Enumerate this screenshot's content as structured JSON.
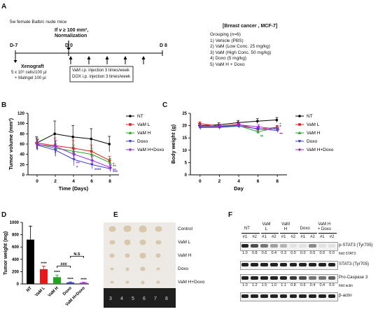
{
  "panelA": {
    "letter": "A",
    "header": "5w female Balb/c nude mice",
    "threshold_line1": "If v ≥ 100 mm³,",
    "threshold_line2": "Normalization",
    "d_start": "D-7",
    "d_zero": "D 0",
    "d_end": "D 8",
    "xenograft_title": "Xenograft",
    "xenograft_line1": "5 x 10⁶ cells/100 µl",
    "xenograft_line2": "+ Matrigel 100 µl",
    "injection_line1": "VaM i.p. injection 3 times/week",
    "injection_line2": "DOX i.p. injection 3 times/week",
    "cancer_title": "[Breast cancer , MCF-7]",
    "grouping_title": "Grouping (n=6)",
    "groups": [
      "1)  Vehicle (PBS)",
      "2)  VaM (Low Conc. 25 mg/kg)",
      "3)  VaM (High Conc. 50 mg/kg)",
      "4)  Doxo (5 mg/kg)",
      "5)  VaM H + Doxo"
    ]
  },
  "series_colors": {
    "NT": "#000000",
    "VaM L": "#e8191a",
    "VaM H": "#1fa61f",
    "Doxo": "#3a3adb",
    "VaM H+Doxo": "#a020f0"
  },
  "legend": [
    "NT",
    "VaM L",
    "VaM H",
    "Doxo",
    "VaM H+Doxo"
  ],
  "panelB": {
    "letter": "B",
    "chart_data": {
      "type": "line",
      "ylabel": "Tumor volume (mm³)",
      "xlabel": "Time (Days)",
      "x": [
        0,
        2,
        4,
        6,
        8
      ],
      "xticks": [
        "0",
        "2",
        "4",
        "6",
        "8"
      ],
      "yticks": [
        "0",
        "20",
        "40",
        "60",
        "80",
        "100",
        "120"
      ],
      "ylim": [
        0,
        120
      ],
      "series": [
        {
          "name": "NT",
          "values": [
            62,
            80,
            74,
            70,
            60
          ],
          "err": [
            12,
            25,
            22,
            20,
            15
          ]
        },
        {
          "name": "VaM L",
          "values": [
            62,
            57,
            52,
            46,
            28
          ],
          "err": [
            10,
            15,
            15,
            12,
            8
          ]
        },
        {
          "name": "VaM H",
          "values": [
            60,
            52,
            46,
            40,
            24
          ],
          "err": [
            10,
            15,
            12,
            12,
            8
          ]
        },
        {
          "name": "Doxo",
          "values": [
            58,
            48,
            30,
            20,
            12
          ],
          "err": [
            10,
            12,
            12,
            8,
            6
          ]
        },
        {
          "name": "VaM H+Doxo",
          "values": [
            59,
            55,
            40,
            28,
            14
          ],
          "err": [
            10,
            12,
            10,
            8,
            6
          ]
        }
      ]
    },
    "stars": [
      "*",
      "**",
      "****",
      "***",
      "**",
      "**",
      "*"
    ]
  },
  "panelC": {
    "letter": "C",
    "chart_data": {
      "type": "line",
      "ylabel": "Body weight (g)",
      "xlabel": "Day",
      "x": [
        0,
        2,
        4,
        6,
        8
      ],
      "xticks": [
        "0",
        "2",
        "4",
        "6",
        "8"
      ],
      "yticks": [
        "0",
        "5",
        "10",
        "15",
        "20",
        "25"
      ],
      "ylim": [
        0,
        25
      ],
      "series": [
        {
          "name": "NT",
          "values": [
            20.0,
            20.3,
            21.2,
            21.8,
            22.3
          ],
          "err": [
            0.8,
            0.8,
            0.9,
            1.0,
            1.0
          ]
        },
        {
          "name": "VaM L",
          "values": [
            20.8,
            19.8,
            20.5,
            18.5,
            19.3
          ],
          "err": [
            0.8,
            0.8,
            0.8,
            0.8,
            0.8
          ]
        },
        {
          "name": "VaM H",
          "values": [
            19.5,
            19.5,
            20.0,
            17.5,
            19.2
          ],
          "err": [
            0.8,
            0.8,
            0.8,
            0.8,
            0.8
          ]
        },
        {
          "name": "Doxo",
          "values": [
            19.2,
            19.3,
            19.8,
            18.7,
            18.0
          ],
          "err": [
            0.8,
            0.8,
            0.8,
            0.8,
            0.8
          ]
        },
        {
          "name": "VaM H+Doxo",
          "values": [
            19.8,
            19.7,
            20.3,
            19.5,
            18.5
          ],
          "err": [
            0.8,
            0.8,
            0.8,
            0.8,
            0.8
          ]
        }
      ]
    },
    "stars": [
      "**",
      "**",
      "*",
      "*"
    ]
  },
  "panelD": {
    "letter": "D",
    "chart_data": {
      "type": "bar",
      "ylabel": "Tumor weight (mg)",
      "categories": [
        "NT",
        "VaM L",
        "VaM H",
        "Doxo",
        "VaM H+Doxo"
      ],
      "values": [
        720,
        240,
        110,
        25,
        20
      ],
      "err": [
        220,
        50,
        35,
        8,
        8
      ],
      "yticks": [
        "0",
        "200",
        "400",
        "600",
        "800",
        "1000"
      ],
      "ylim": [
        0,
        1000
      ],
      "colors": [
        "#000000",
        "#e8191a",
        "#1fa61f",
        "#3a3adb",
        "#a020f0"
      ]
    },
    "sig_stars": "****",
    "sig_hash": "###",
    "sig_ns": "N.S"
  },
  "panelE": {
    "letter": "E",
    "rows": [
      "Control",
      "VaM L",
      "VaM H",
      "Doxo",
      "VaM H+Doxo"
    ],
    "ruler_marks": [
      "3",
      "4",
      "5",
      "6",
      "7",
      "8"
    ]
  },
  "panelF": {
    "letter": "F",
    "groups": [
      "NT",
      "VaM L",
      "VaM H",
      "Doxo",
      "VaM H + Doxo"
    ],
    "lanes": [
      "#1",
      "#2",
      "#1",
      "#2",
      "#1",
      "#2",
      "#1",
      "#2",
      "#1",
      "#2"
    ],
    "rows": [
      {
        "label": "p-STAT3 (Tyr705)",
        "folds": [
          "1.0",
          "0.8",
          "0.6",
          "0.4",
          "0.3",
          "0.0",
          "0.0",
          "0.5",
          "0.0",
          "0.0"
        ],
        "fold_note": "fold STAT3",
        "intensity": [
          1,
          0.8,
          0.6,
          0.4,
          0.3,
          0.05,
          0.05,
          0.5,
          0.05,
          0.05
        ]
      },
      {
        "label": "STAT3 (Tyr705)",
        "folds": [],
        "fold_note": "",
        "intensity": [
          1,
          1,
          1,
          1,
          1,
          1,
          1,
          1,
          1,
          1
        ]
      },
      {
        "label": "Pro-Caspase 3",
        "folds": [
          "1.0",
          "1.2",
          "1.5",
          "1.0",
          "1.1",
          "0.8",
          "0.6",
          "0.4",
          "0.4",
          "0.6"
        ],
        "fold_note": "fold actin",
        "intensity": [
          1,
          1,
          1,
          1,
          1,
          0.9,
          0.8,
          0.6,
          0.6,
          0.7
        ]
      },
      {
        "label": "β-actin",
        "folds": [],
        "fold_note": "",
        "intensity": [
          1,
          1,
          1,
          1,
          1,
          1,
          1,
          1,
          1,
          1
        ]
      }
    ]
  }
}
